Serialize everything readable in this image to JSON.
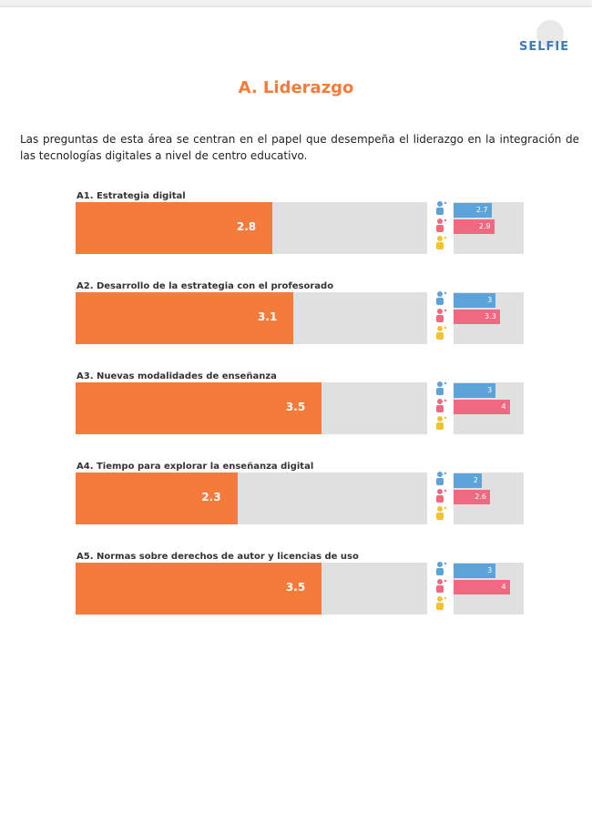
{
  "header": {
    "logo": "SELFIE",
    "title": "A. Liderazgo",
    "intro": "Las preguntas de esta área se centran en el papel que desempeña el liderazgo en la integración de las tecnologías digitales a nivel de centro educativo."
  },
  "chart_data": {
    "type": "bar",
    "xlim": [
      0,
      5
    ],
    "categories": [
      "A1. Estrategia digital",
      "A2. Desarrollo de la estrategia con el profesorado",
      "A3. Nuevas modalidades de enseñanza",
      "A4. Tiempo para explorar la enseñanza digital",
      "A5. Normas sobre derechos de autor y licencias de uso"
    ],
    "values": [
      2.8,
      3.1,
      3.5,
      2.3,
      3.5
    ],
    "color": "#f47b3a",
    "series": [
      {
        "color": "#5ba3d9",
        "values": [
          2.7,
          3,
          3,
          2,
          3
        ]
      },
      {
        "color": "#ef6a80",
        "values": [
          2.9,
          3.3,
          4,
          2.6,
          4
        ]
      }
    ]
  }
}
